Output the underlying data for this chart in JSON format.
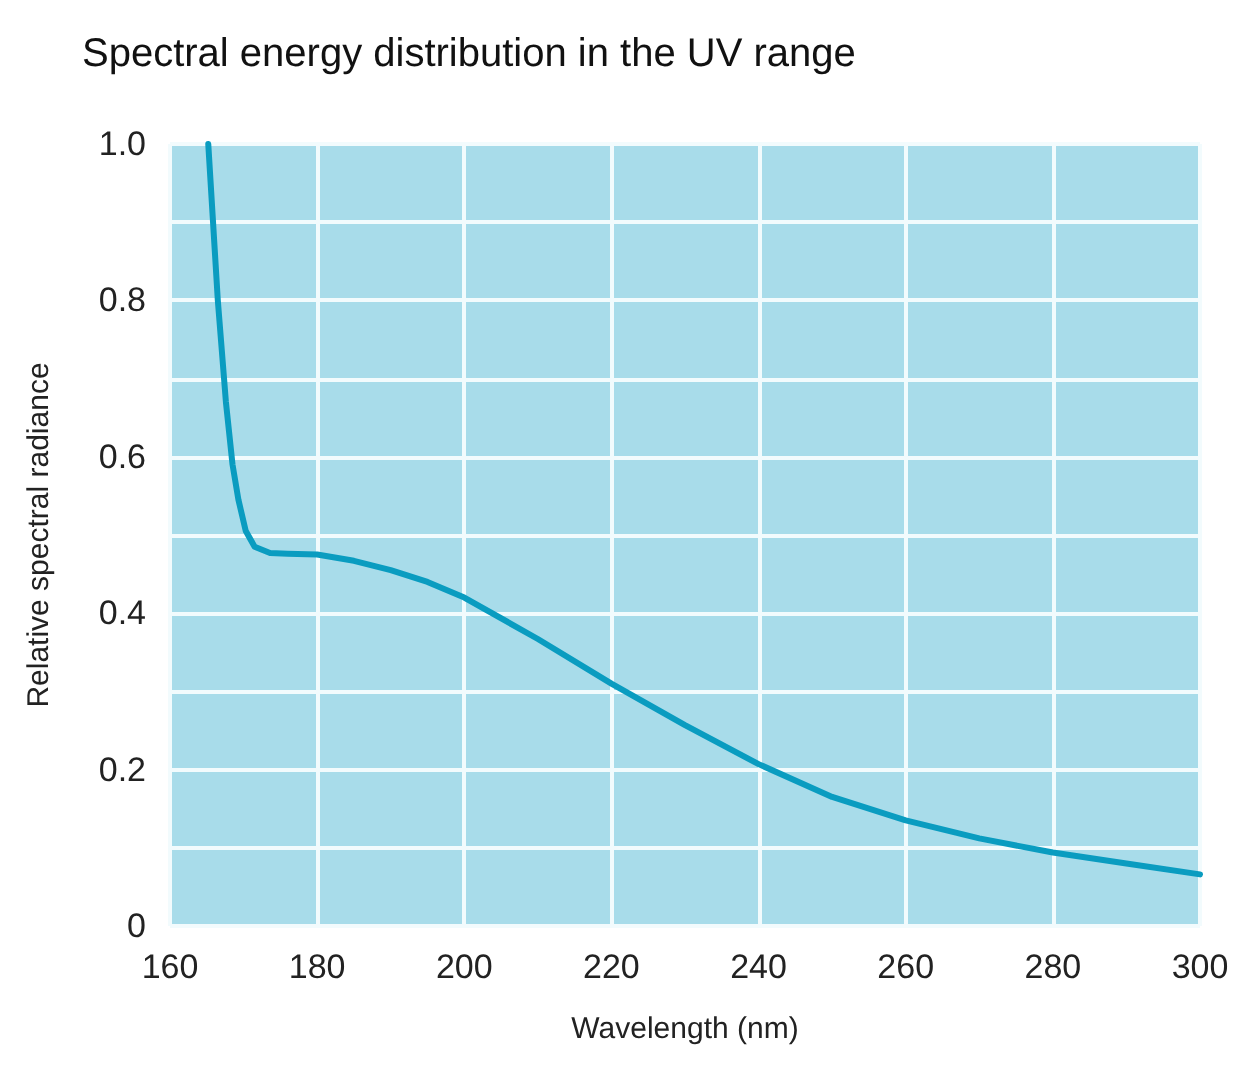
{
  "chart_data": {
    "type": "line",
    "title": "Spectral energy distribution in the UV range",
    "xlabel": "Wavelength (nm)",
    "ylabel": "Relative spectral radiance",
    "x": [
      165.2,
      166.5,
      167.6,
      168.5,
      169.3,
      170.3,
      171.5,
      173.6,
      176,
      180,
      185,
      190,
      195,
      200,
      210,
      220,
      230,
      240,
      250,
      260,
      270,
      280,
      290,
      300
    ],
    "series": [
      {
        "color": "#0a9cc0",
        "values": [
          1.0,
          0.8,
          0.67,
          0.59,
          0.545,
          0.505,
          0.485,
          0.477,
          0.476,
          0.475,
          0.467,
          0.455,
          0.44,
          0.42,
          0.367,
          0.31,
          0.257,
          0.207,
          0.165,
          0.135,
          0.112,
          0.094,
          0.08,
          0.066
        ]
      }
    ],
    "xlim": [
      160,
      300
    ],
    "xticks": [
      160,
      180,
      200,
      220,
      240,
      260,
      280,
      300
    ],
    "ylim": [
      0,
      1.0
    ],
    "yticks": [
      0,
      {
        "value": 0.1,
        "label": null
      },
      0.2,
      {
        "value": 0.3,
        "label": null
      },
      0.4,
      {
        "value": 0.5,
        "label": null
      },
      0.6,
      {
        "value": 0.7,
        "label": null
      },
      0.8,
      {
        "value": 0.9,
        "label": null
      },
      {
        "value": 1.0,
        "label": "1.0"
      }
    ],
    "grid": true,
    "marker": "none",
    "line_style": "solid"
  }
}
